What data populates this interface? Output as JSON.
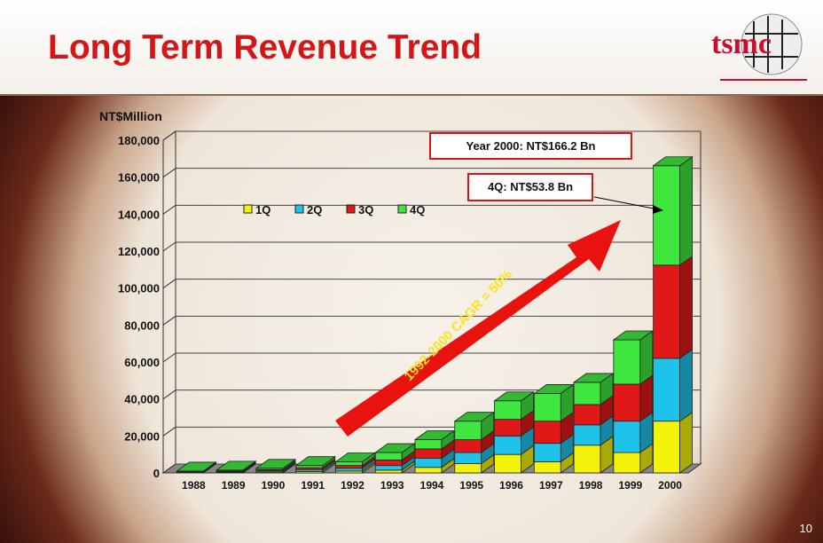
{
  "title": "Long Term Revenue Trend",
  "logo_text": "tsmc",
  "page_number": "10",
  "callouts": {
    "year_total": "Year 2000: NT$166.2 Bn",
    "q4": "4Q: NT$53.8 Bn",
    "cagr": "1992-2000 CAGR = 50%"
  },
  "chart_data": {
    "type": "bar",
    "stacked": true,
    "ylabel": "NT$Million",
    "ylim": [
      0,
      180000
    ],
    "yticks": [
      "0",
      "20,000",
      "40,000",
      "60,000",
      "80,000",
      "100,000",
      "120,000",
      "140,000",
      "160,000",
      "180,000"
    ],
    "categories": [
      "1988",
      "1989",
      "1990",
      "1991",
      "1992",
      "1993",
      "1994",
      "1995",
      "1996",
      "1997",
      "1998",
      "1999",
      "2000"
    ],
    "legend_position": "top-left",
    "series": [
      {
        "name": "1Q",
        "color": "#f2f20a",
        "values": [
          200,
          300,
          500,
          800,
          1000,
          1500,
          3000,
          5000,
          10000,
          6000,
          15000,
          11000,
          28000
        ]
      },
      {
        "name": "2Q",
        "color": "#1ec3ea",
        "values": [
          250,
          350,
          600,
          1000,
          1500,
          2500,
          5000,
          6000,
          10000,
          10000,
          11000,
          17000,
          34000
        ]
      },
      {
        "name": "3Q",
        "color": "#e01818",
        "values": [
          250,
          400,
          650,
          1000,
          1500,
          3000,
          5000,
          7000,
          9000,
          12000,
          11000,
          20000,
          50400
        ]
      },
      {
        "name": "4Q",
        "color": "#3ee63e",
        "values": [
          300,
          450,
          750,
          1200,
          2000,
          4000,
          5000,
          10000,
          10000,
          15000,
          12000,
          24000,
          53800
        ]
      }
    ]
  }
}
